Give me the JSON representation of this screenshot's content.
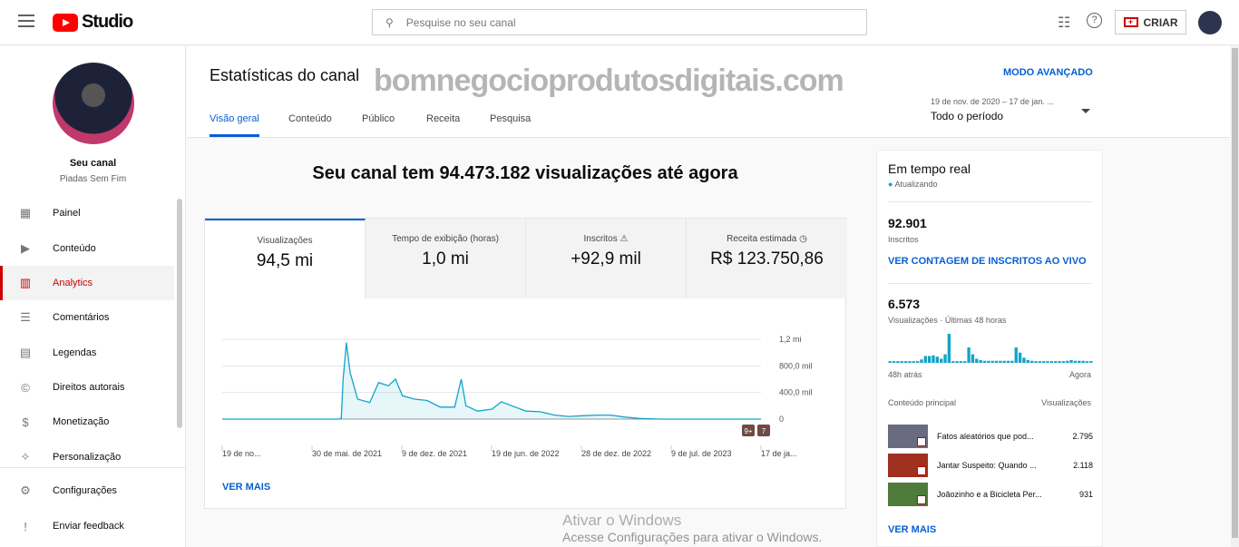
{
  "topbar": {
    "brand": "Studio",
    "search_placeholder": "Pesquise no seu canal",
    "create_label": "CRIAR"
  },
  "sidebar": {
    "channel_label": "Seu canal",
    "channel_name": "Piadas Sem Fim",
    "items": [
      {
        "label": "Painel",
        "icon": "dashboard-icon"
      },
      {
        "label": "Conteúdo",
        "icon": "content-icon"
      },
      {
        "label": "Analytics",
        "icon": "analytics-icon",
        "active": true
      },
      {
        "label": "Comentários",
        "icon": "comments-icon"
      },
      {
        "label": "Legendas",
        "icon": "subtitles-icon"
      },
      {
        "label": "Direitos autorais",
        "icon": "copyright-icon"
      },
      {
        "label": "Monetização",
        "icon": "dollar-icon"
      },
      {
        "label": "Personalização",
        "icon": "wand-icon"
      }
    ],
    "bottom": [
      {
        "label": "Configurações",
        "icon": "gear-icon"
      },
      {
        "label": "Enviar feedback",
        "icon": "feedback-icon"
      }
    ]
  },
  "header": {
    "title": "Estatísticas do canal",
    "advanced": "MODO AVANÇADO",
    "tabs": [
      "Visão geral",
      "Conteúdo",
      "Público",
      "Receita",
      "Pesquisa"
    ],
    "active_tab": "Visão geral",
    "date_range": "19 de nov. de 2020 – 17 de jan. ...",
    "period": "Todo o período"
  },
  "overview": {
    "headline": "Seu canal tem 94.473.182 visualizações até agora",
    "metrics": [
      {
        "label": "Visualizações",
        "value": "94,5 mi"
      },
      {
        "label": "Tempo de exibição (horas)",
        "value": "1,0 mi"
      },
      {
        "label": "Inscritos ⚠",
        "value": "+92,9 mil"
      },
      {
        "label": "Receita estimada ◷",
        "value": "R$ 123.750,86"
      }
    ],
    "see_more": "VER MAIS",
    "badges": [
      "9+",
      "7"
    ]
  },
  "chart_data": {
    "type": "area",
    "series": [
      {
        "values": [
          [
            "2020-11-19",
            0
          ],
          [
            "2021-07-25",
            0
          ],
          [
            "2021-08-01",
            10
          ],
          [
            "2021-08-05",
            600
          ],
          [
            "2021-08-12",
            1150
          ],
          [
            "2021-08-20",
            700
          ],
          [
            "2021-09-05",
            300
          ],
          [
            "2021-10-01",
            250
          ],
          [
            "2021-10-20",
            550
          ],
          [
            "2021-11-10",
            500
          ],
          [
            "2021-11-25",
            600
          ],
          [
            "2021-12-10",
            350
          ],
          [
            "2022-01-05",
            300
          ],
          [
            "2022-02-01",
            280
          ],
          [
            "2022-03-01",
            180
          ],
          [
            "2022-04-01",
            180
          ],
          [
            "2022-04-15",
            600
          ],
          [
            "2022-04-25",
            200
          ],
          [
            "2022-05-20",
            120
          ],
          [
            "2022-06-20",
            150
          ],
          [
            "2022-07-10",
            260
          ],
          [
            "2022-08-01",
            200
          ],
          [
            "2022-09-01",
            120
          ],
          [
            "2022-10-01",
            110
          ],
          [
            "2022-11-01",
            60
          ],
          [
            "2022-12-01",
            40
          ],
          [
            "2023-01-01",
            50
          ],
          [
            "2023-02-01",
            60
          ],
          [
            "2023-03-01",
            60
          ],
          [
            "2023-04-01",
            30
          ],
          [
            "2023-05-01",
            10
          ],
          [
            "2023-06-15",
            0
          ],
          [
            "2024-01-17",
            0
          ]
        ]
      }
    ],
    "x_ticks": [
      "19 de no...",
      "30 de mai. de 2021",
      "9 de dez. de 2021",
      "19 de jun. de 2022",
      "28 de dez. de 2022",
      "9 de jul. de 2023",
      "17 de ja..."
    ],
    "y_ticks": [
      "0",
      "400,0 mil",
      "800,0 mil",
      "1,2 mi"
    ],
    "ylim": [
      0,
      1200
    ],
    "ylabel_unit": "mil",
    "grid": true,
    "color": "#12a4c9"
  },
  "realtime": {
    "title": "Em tempo real",
    "status": "Atualizando",
    "subs": "92.901",
    "subs_label": "Inscritos",
    "live_link": "VER CONTAGEM DE INSCRITOS AO VIVO",
    "views": "6.573",
    "views_label": "Visualizações · Últimas 48 horas",
    "start": "48h atrás",
    "end": "Agora",
    "bars": [
      5,
      5,
      5,
      5,
      5,
      5,
      5,
      5,
      10,
      20,
      20,
      22,
      18,
      12,
      25,
      85,
      5,
      5,
      5,
      5,
      45,
      25,
      12,
      8,
      6,
      6,
      6,
      6,
      6,
      6,
      6,
      6,
      45,
      30,
      15,
      8,
      6,
      5,
      5,
      5,
      5,
      5,
      5,
      5,
      5,
      6,
      8,
      6,
      6,
      6,
      5,
      5
    ],
    "top_header": "Conteúdo principal",
    "views_header": "Visualizações",
    "videos": [
      {
        "title": "Fatos aleatórios que pod...",
        "views": "2.795"
      },
      {
        "title": "Jantar Suspeito: Quando ...",
        "views": "2.118"
      },
      {
        "title": "Joãozinho e a Bicicleta Per...",
        "views": "931"
      }
    ],
    "see_more": "VER MAIS"
  },
  "watermark": "bomnegocioprodutosdigitais.com",
  "windows": {
    "line1": "Ativar o Windows",
    "line2": "Acesse Configurações para ativar o Windows."
  }
}
